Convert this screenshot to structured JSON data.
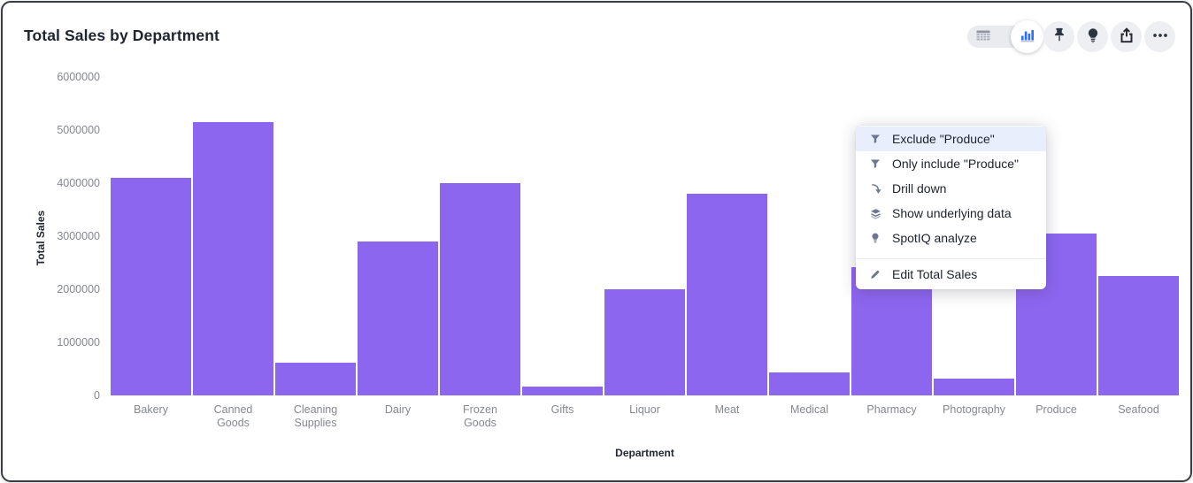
{
  "header": {
    "title": "Total Sales by Department",
    "toolbar": {
      "view_toggle": {
        "options": [
          "table-view",
          "chart-view"
        ],
        "active": "chart-view"
      },
      "buttons": [
        "pin",
        "spotiq-insights",
        "share",
        "more-actions"
      ]
    }
  },
  "chart_data": {
    "type": "bar",
    "title": "Total Sales by Department",
    "categories": [
      "Bakery",
      "Canned Goods",
      "Cleaning Supplies",
      "Dairy",
      "Frozen Goods",
      "Gifts",
      "Liquor",
      "Meat",
      "Medical",
      "Pharmacy",
      "Photography",
      "Produce",
      "Seafood"
    ],
    "values": [
      4100000,
      5150000,
      620000,
      2900000,
      4000000,
      170000,
      2000000,
      3800000,
      430000,
      2420000,
      310000,
      3050000,
      2250000
    ],
    "xlabel": "Department",
    "ylabel": "Total Sales",
    "ylim": [
      0,
      6000000
    ],
    "yticks": [
      0,
      1000000,
      2000000,
      3000000,
      4000000,
      5000000,
      6000000
    ],
    "grid": false,
    "legend": false,
    "bar_color": "#8D66F0"
  },
  "context_menu": {
    "items": [
      {
        "label": "Exclude \"Produce\"",
        "icon": "filter",
        "highlighted": true
      },
      {
        "label": "Only include \"Produce\"",
        "icon": "filter",
        "highlighted": false
      },
      {
        "label": "Drill down",
        "icon": "drill-down",
        "highlighted": false
      },
      {
        "label": "Show underlying data",
        "icon": "layers",
        "highlighted": false
      },
      {
        "label": "SpotIQ analyze",
        "icon": "bulb",
        "highlighted": false
      },
      {
        "label": "Edit Total Sales",
        "icon": "pencil",
        "highlighted": false,
        "separator_before": true
      }
    ]
  },
  "colors": {
    "bar": "#8D66F0",
    "toggle_active_blue": "#2D6FF0",
    "menu_highlight": "#E8EEFB",
    "frame_border": "#3A3D44",
    "axis_tick_gray": "#85888F",
    "dark_text": "#1E2430",
    "menu_icon_slate": "#6B7890"
  }
}
